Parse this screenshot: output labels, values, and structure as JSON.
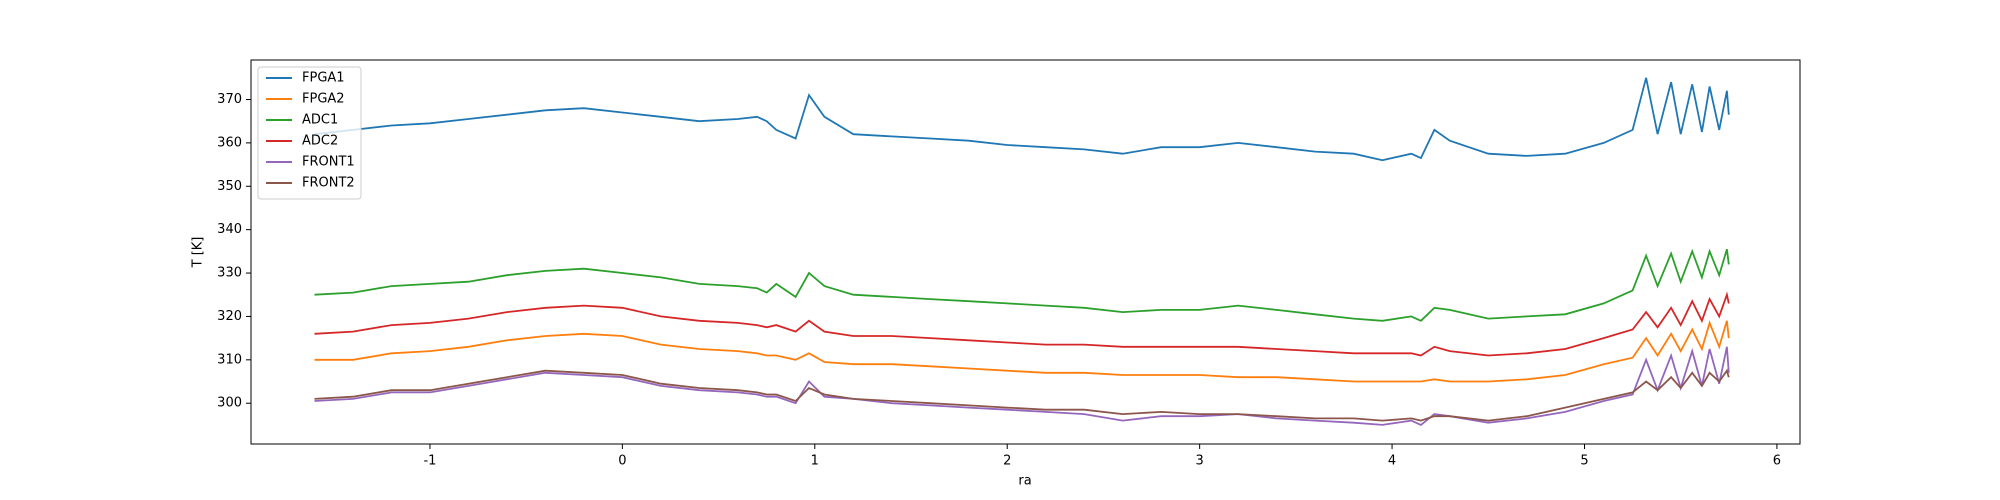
{
  "chart_data": {
    "type": "line",
    "x_label": "ra",
    "y_label": "T [K]",
    "xlim": [
      -1.93,
      6.12
    ],
    "ylim": [
      290.6,
      379.1
    ],
    "xticks": [
      -1,
      0,
      1,
      2,
      3,
      4,
      5,
      6
    ],
    "yticks": [
      300,
      310,
      320,
      330,
      340,
      350,
      360,
      370
    ],
    "legend": "upper left",
    "x": [
      -1.6,
      -1.4,
      -1.2,
      -1.0,
      -0.8,
      -0.6,
      -0.4,
      -0.2,
      0,
      0.2,
      0.4,
      0.6,
      0.7,
      0.75,
      0.8,
      0.9,
      0.97,
      1.05,
      1.2,
      1.4,
      1.6,
      1.8,
      2.0,
      2.2,
      2.4,
      2.6,
      2.8,
      3.0,
      3.2,
      3.4,
      3.6,
      3.8,
      3.95,
      4.1,
      4.15,
      4.22,
      4.3,
      4.5,
      4.7,
      4.9,
      5.1,
      5.25,
      5.32,
      5.38,
      5.45,
      5.5,
      5.56,
      5.61,
      5.65,
      5.7,
      5.74,
      5.75
    ],
    "series": [
      {
        "name": "FPGA1",
        "color": "#1f77b4",
        "values": [
          362,
          363,
          364,
          364.5,
          365.5,
          366.5,
          367.5,
          368,
          367,
          366,
          365,
          365.5,
          366,
          365,
          363,
          361,
          371,
          366,
          362,
          361.5,
          361,
          360.5,
          359.5,
          359,
          358.5,
          357.5,
          359,
          359,
          360,
          359,
          358,
          357.5,
          356,
          357.5,
          356.5,
          363,
          360.5,
          357.5,
          357,
          357.5,
          360,
          363,
          375,
          362,
          374,
          362,
          373.5,
          362.5,
          373,
          363,
          372,
          366.5
        ]
      },
      {
        "name": "FPGA2",
        "color": "#ff7f0e",
        "values": [
          310,
          310,
          311.5,
          312,
          313,
          314.5,
          315.5,
          316,
          315.5,
          313.5,
          312.5,
          312,
          311.5,
          311,
          311,
          310,
          311.5,
          309.5,
          309,
          309,
          308.5,
          308,
          307.5,
          307,
          307,
          306.5,
          306.5,
          306.5,
          306,
          306,
          305.5,
          305,
          305,
          305,
          305,
          305.5,
          305,
          305,
          305.5,
          306.5,
          309,
          310.5,
          315,
          311,
          316,
          312,
          317,
          312.5,
          318.5,
          313,
          319,
          315
        ]
      },
      {
        "name": "ADC1",
        "color": "#2ca02c",
        "values": [
          325,
          325.5,
          327,
          327.5,
          328,
          329.5,
          330.5,
          331,
          330,
          329,
          327.5,
          327,
          326.5,
          325.5,
          327.5,
          324.5,
          330,
          327,
          325,
          324.5,
          324,
          323.5,
          323,
          322.5,
          322,
          321,
          321.5,
          321.5,
          322.5,
          321.5,
          320.5,
          319.5,
          319,
          320,
          319,
          322,
          321.5,
          319.5,
          320,
          320.5,
          323,
          326,
          334,
          327,
          334.5,
          328,
          335,
          329,
          335,
          329.5,
          335.5,
          332
        ]
      },
      {
        "name": "ADC2",
        "color": "#d62728",
        "values": [
          316,
          316.5,
          318,
          318.5,
          319.5,
          321,
          322,
          322.5,
          322,
          320,
          319,
          318.5,
          318,
          317.5,
          318,
          316.5,
          319,
          316.5,
          315.5,
          315.5,
          315,
          314.5,
          314,
          313.5,
          313.5,
          313,
          313,
          313,
          313,
          312.5,
          312,
          311.5,
          311.5,
          311.5,
          311,
          313,
          312,
          311,
          311.5,
          312.5,
          315,
          317,
          321,
          317.5,
          322,
          318,
          323.5,
          319,
          324,
          320,
          325,
          323
        ]
      },
      {
        "name": "FRONT1",
        "color": "#9467bd",
        "values": [
          300.5,
          301,
          302.5,
          302.5,
          304,
          305.5,
          307,
          306.5,
          306,
          304,
          303,
          302.5,
          302,
          301.5,
          301.5,
          300,
          305,
          301.5,
          301,
          300,
          299.5,
          299,
          298.5,
          298,
          297.5,
          296,
          297,
          297,
          297.5,
          296.5,
          296,
          295.5,
          295,
          296,
          295,
          297.5,
          297,
          295.5,
          296.5,
          298,
          300.5,
          302,
          310,
          303,
          311,
          303.5,
          312,
          304,
          312.5,
          304.5,
          313,
          307
        ]
      },
      {
        "name": "FRONT2",
        "color": "#8c564b",
        "values": [
          301,
          301.5,
          303,
          303,
          304.5,
          306,
          307.5,
          307,
          306.5,
          304.5,
          303.5,
          303,
          302.5,
          302,
          302,
          300.5,
          303.5,
          302,
          301,
          300.5,
          300,
          299.5,
          299,
          298.5,
          298.5,
          297.5,
          298,
          297.5,
          297.5,
          297,
          296.5,
          296.5,
          296,
          296.5,
          296,
          297,
          297,
          296,
          297,
          299,
          301,
          302.5,
          305,
          303,
          306,
          303.5,
          307,
          304,
          307,
          305,
          307.5,
          306
        ]
      }
    ]
  }
}
